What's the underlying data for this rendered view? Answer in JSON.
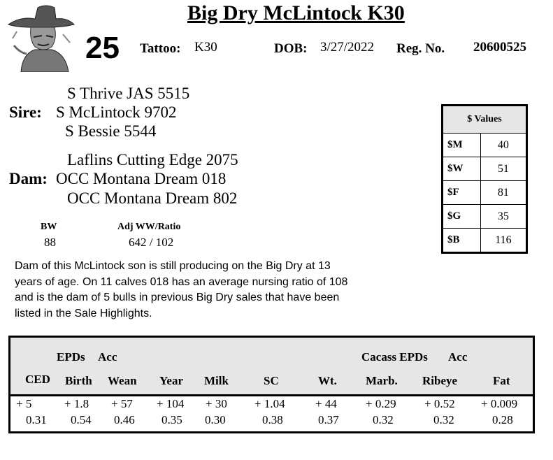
{
  "header": {
    "title": "Big Dry McLintock K30",
    "lot_number": "25",
    "tattoo_label": "Tattoo:",
    "tattoo_value": "K30",
    "dob_label": "DOB:",
    "dob_value": "3/27/2022",
    "reg_label": "Reg. No.",
    "reg_value": "20600525"
  },
  "pedigree": {
    "sire_label": "Sire:",
    "sire": "S McLintock 9702",
    "sire_sire": "S Thrive JAS 5515",
    "sire_dam": "S Bessie 5544",
    "dam_label": "Dam:",
    "dam": "OCC Montana Dream 018",
    "dam_sire": "Laflins Cutting Edge 2075",
    "dam_dam": "OCC Montana Dream 802"
  },
  "weights": {
    "bw_label": "BW",
    "bw_value": "88",
    "ww_label": "Adj WW/Ratio",
    "ww_value": "642 / 102"
  },
  "description": "Dam of this McLintock son is still producing on the Big Dry at 13 years of age.  On 11 calves 018 has an average nursing ratio of 108 and is the dam of 5 bulls in previous Big Dry sales that have been listed in the Sale Highlights.",
  "dollar_values": {
    "header": "$ Values",
    "rows": [
      {
        "label": "$M",
        "value": "40"
      },
      {
        "label": "$W",
        "value": "51"
      },
      {
        "label": "$F",
        "value": "81"
      },
      {
        "label": "$G",
        "value": "35"
      },
      {
        "label": "$B",
        "value": "116"
      }
    ]
  },
  "epds": {
    "group1_label": "EPDs",
    "acc1_label": "Acc",
    "group2_label": "Cacass EPDs",
    "acc2_label": "Acc",
    "columns": [
      "CED",
      "Birth",
      "Wean",
      "Year",
      "Milk",
      "SC",
      "Wt.",
      "Marb.",
      "Ribeye",
      "Fat"
    ],
    "epd_values": [
      "+ 5",
      "+ 1.8",
      "+ 57",
      "+ 104",
      "+ 30",
      "+ 1.04",
      "+ 44",
      "+ 0.29",
      "+ 0.52",
      "+ 0.009"
    ],
    "acc_values": [
      "0.31",
      "0.54",
      "0.46",
      "0.35",
      "0.30",
      "0.38",
      "0.37",
      "0.32",
      "0.32",
      "0.28"
    ]
  }
}
